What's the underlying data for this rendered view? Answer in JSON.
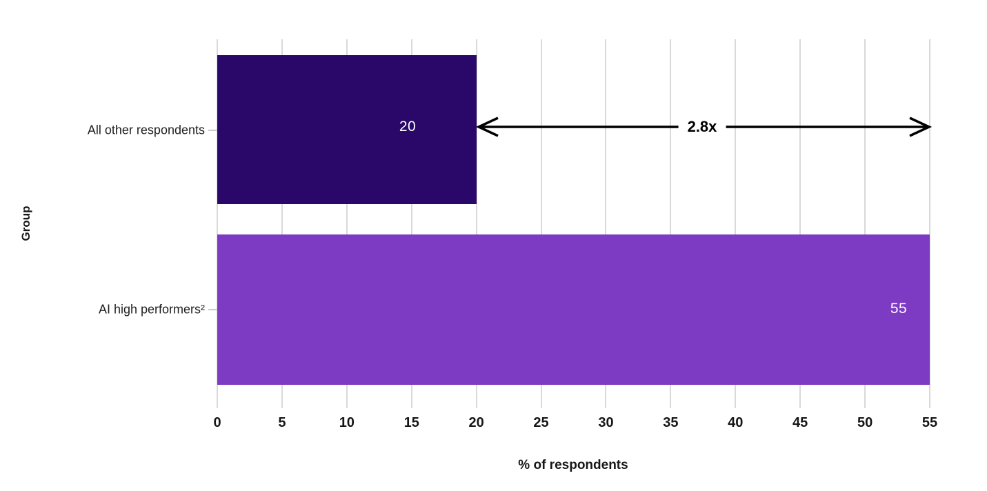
{
  "chart_data": {
    "type": "bar",
    "orientation": "horizontal",
    "categories": [
      "All other respondents",
      "AI high performers²"
    ],
    "values": [
      20,
      55
    ],
    "value_labels": [
      "20",
      "55"
    ],
    "xlabel": "% of respondents",
    "ylabel": "Group",
    "xlim": [
      0,
      55
    ],
    "xticks": [
      0,
      5,
      10,
      15,
      20,
      25,
      30,
      35,
      40,
      45,
      50,
      55
    ],
    "grid": true,
    "legend": false,
    "bar_colors": [
      "#2a0869",
      "#7d3ac2"
    ],
    "annotation": {
      "text": "2.8x",
      "from_value": 20,
      "to_value": 55
    }
  },
  "colors": {
    "background": "#ffffff",
    "gridline": "#d9d9d9",
    "tick_mark": "#c9c9c9",
    "axis_text": "#161616",
    "category_text": "#1f1f1f",
    "value_text": "#ffffff",
    "arrow": "#000000"
  }
}
